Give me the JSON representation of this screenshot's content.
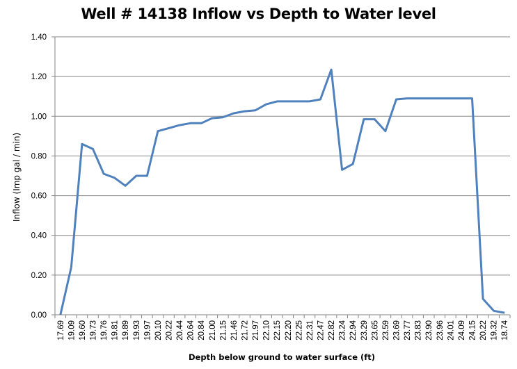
{
  "chart_data": {
    "type": "line",
    "title": "Well # 14138 Inflow vs Depth to Water level",
    "xlabel": "Depth below ground to water surface  (ft)",
    "ylabel": "Inflow (Imp gal / min)",
    "ylim": [
      0,
      1.4
    ],
    "yticks": [
      "0.00",
      "0.20",
      "0.40",
      "0.60",
      "0.80",
      "1.00",
      "1.20",
      "1.40"
    ],
    "grid": true,
    "legend": "none",
    "line_color": "#4F81BD",
    "categories": [
      "17.69",
      "19.09",
      "19.60",
      "19.73",
      "19.76",
      "19.81",
      "19.89",
      "19.93",
      "19.97",
      "20.10",
      "20.22",
      "20.44",
      "20.64",
      "20.84",
      "21.00",
      "21.15",
      "21.46",
      "21.72",
      "21.97",
      "22.10",
      "22.15",
      "22.20",
      "22.25",
      "22.31",
      "22.47",
      "22.82",
      "23.24",
      "22.94",
      "23.29",
      "23.65",
      "23.59",
      "23.69",
      "23.77",
      "23.83",
      "23.90",
      "23.96",
      "24.01",
      "24.09",
      "24.15",
      "20.22",
      "19.32",
      "18.74"
    ],
    "series": [
      {
        "name": "Inflow",
        "values": [
          0.0,
          0.24,
          0.86,
          0.835,
          0.71,
          0.69,
          0.65,
          0.7,
          0.7,
          0.925,
          0.94,
          0.955,
          0.965,
          0.965,
          0.99,
          0.995,
          1.015,
          1.025,
          1.03,
          1.06,
          1.075,
          1.075,
          1.075,
          1.075,
          1.085,
          1.235,
          0.73,
          0.76,
          0.985,
          0.985,
          0.925,
          1.085,
          1.09,
          1.09,
          1.09,
          1.09,
          1.09,
          1.09,
          1.09,
          0.08,
          0.02,
          0.01
        ]
      }
    ]
  }
}
